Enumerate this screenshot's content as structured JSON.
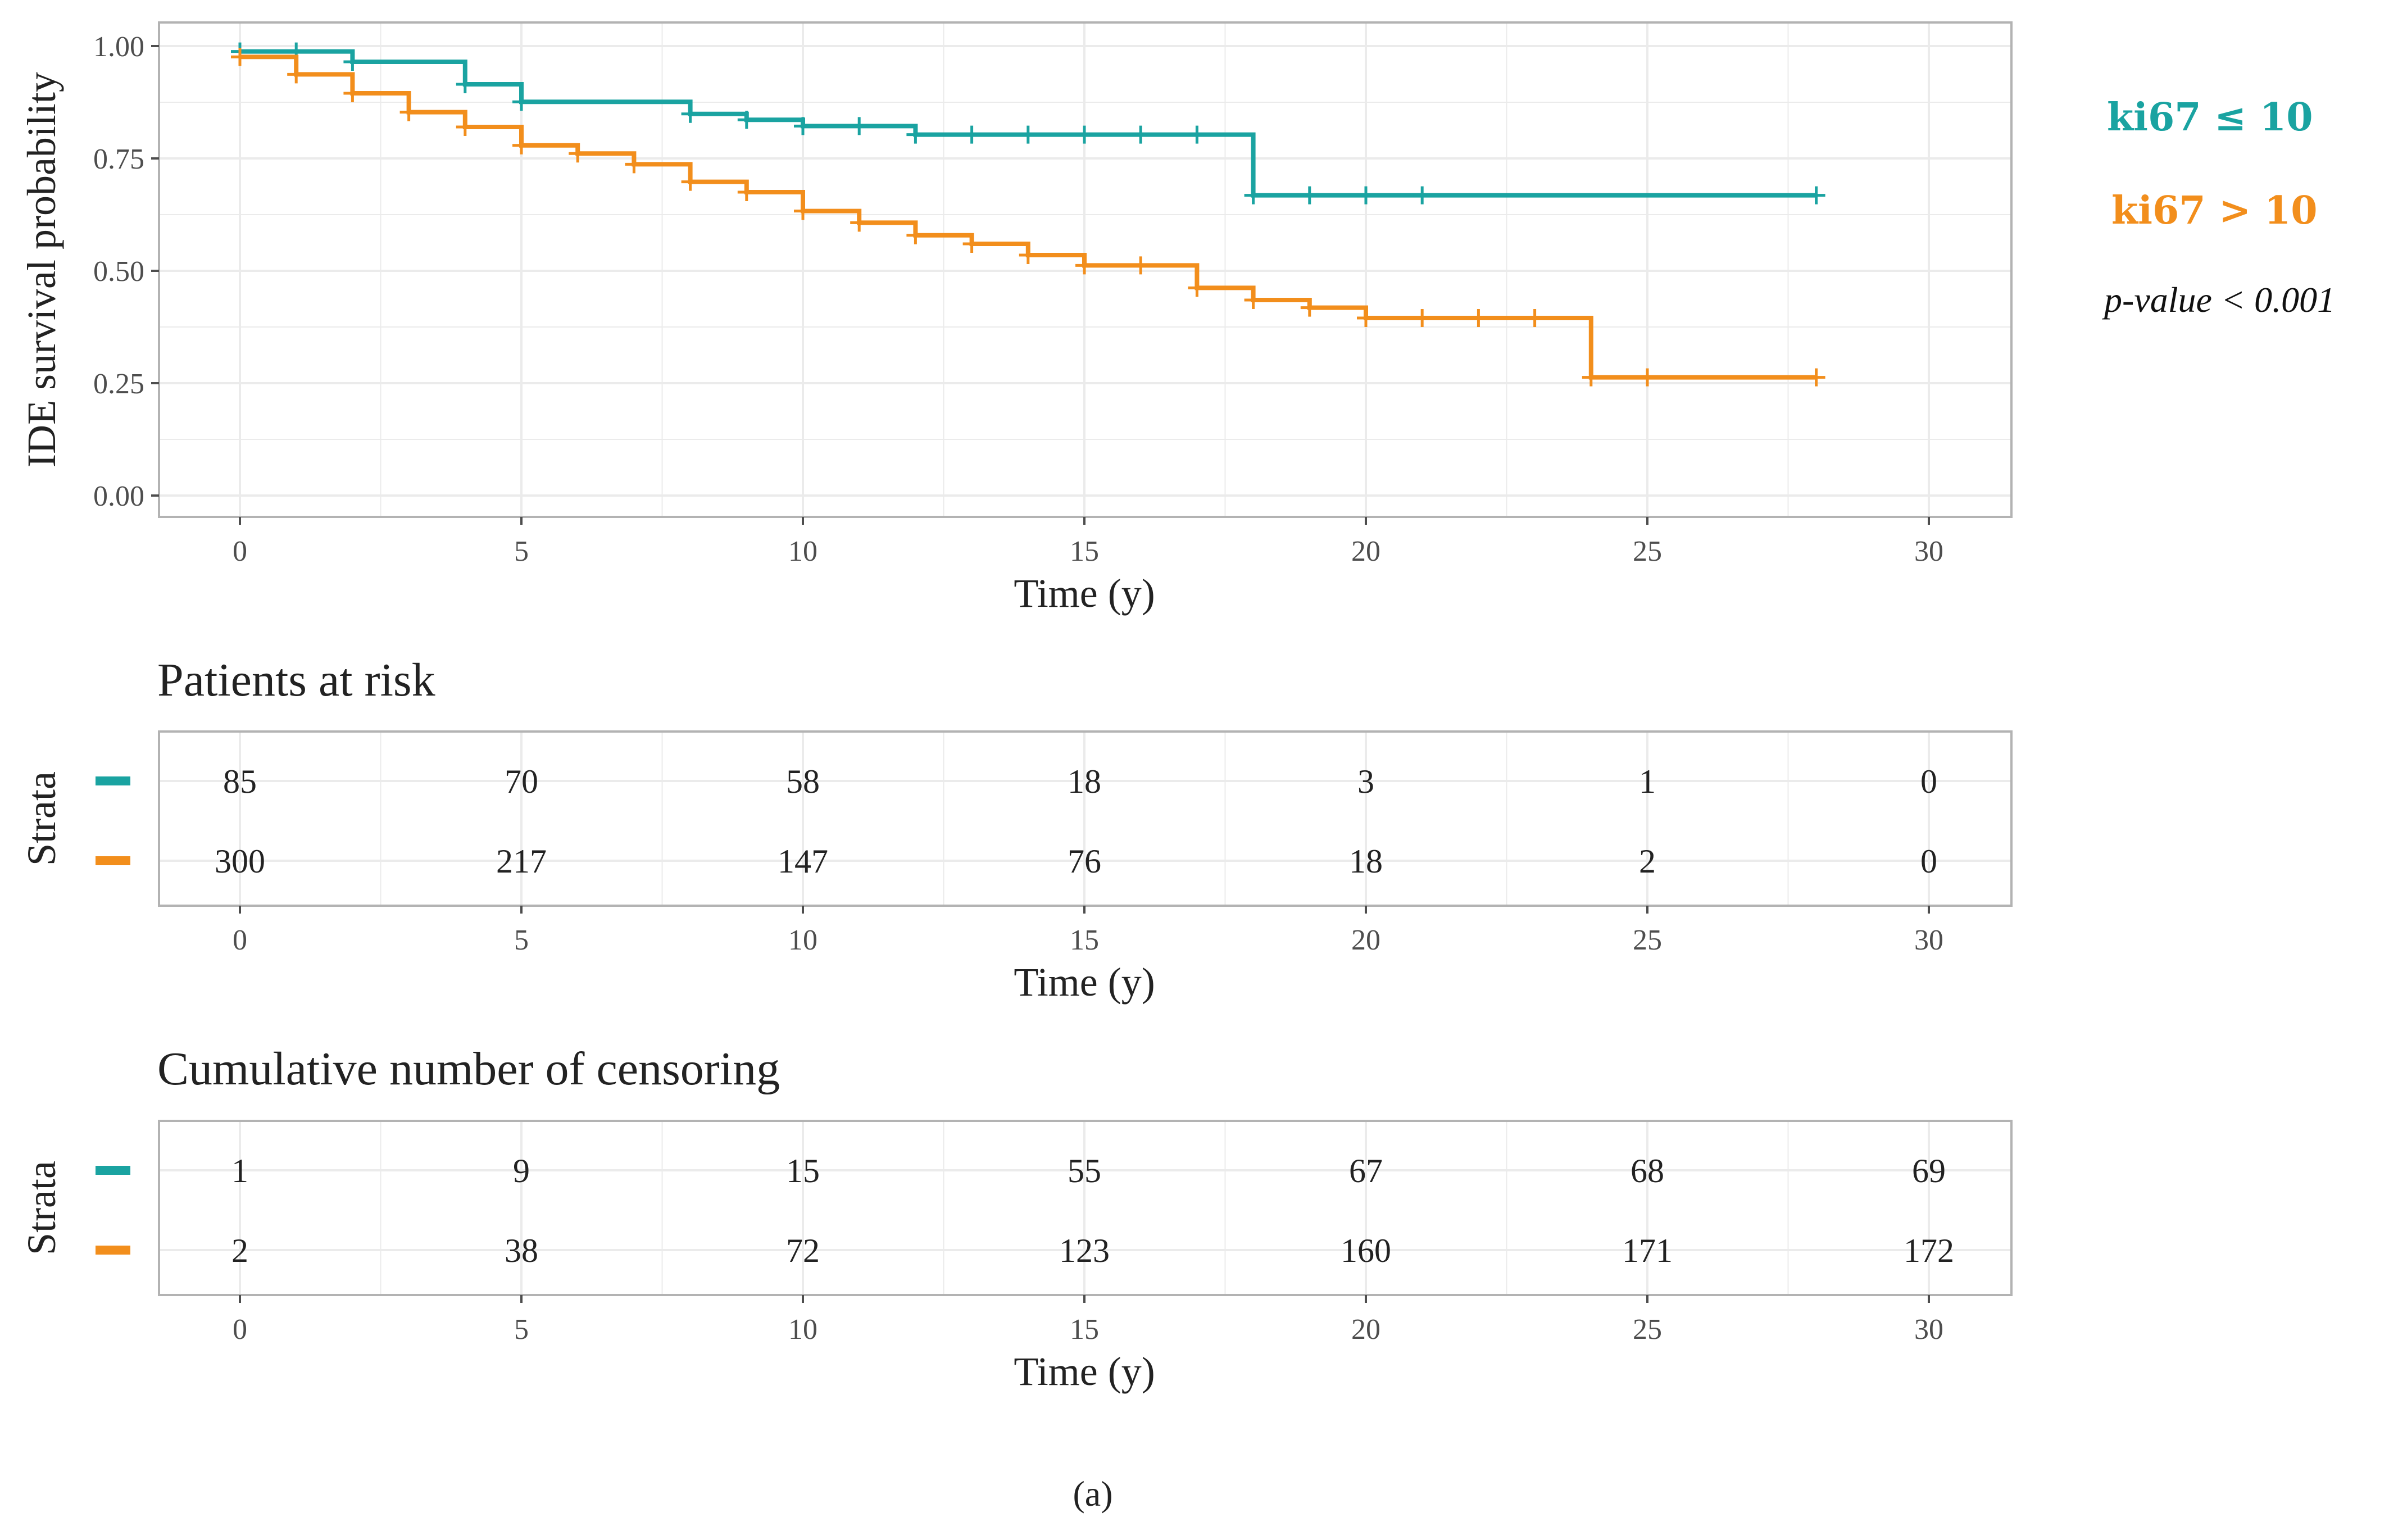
{
  "chart_data": [
    {
      "type": "line",
      "subtype": "kaplan-meier-step",
      "xlabel": "Time (y)",
      "ylabel": "IDE survival probability",
      "xlim": [
        0,
        30
      ],
      "ylim": [
        0,
        1
      ],
      "x_ticks": [
        "0",
        "5",
        "10",
        "15",
        "20",
        "25",
        "30"
      ],
      "y_ticks": [
        "0.00",
        "0.25",
        "0.50",
        "0.75",
        "1.00"
      ],
      "grid": true,
      "legend_placement": "right",
      "series": [
        {
          "name": "ki67 ≤ 10",
          "color": "#1aa3a1",
          "steps": [
            [
              0,
              0.988
            ],
            [
              1,
              0.988
            ],
            [
              2,
              0.965
            ],
            [
              4,
              0.915
            ],
            [
              5,
              0.876
            ],
            [
              8,
              0.849
            ],
            [
              9,
              0.836
            ],
            [
              10,
              0.822
            ],
            [
              12,
              0.803
            ],
            [
              18,
              0.668
            ],
            [
              28,
              0.668
            ]
          ],
          "censor_x": [
            0,
            1,
            2,
            4,
            5,
            8,
            9,
            10,
            11,
            12,
            13,
            14,
            15,
            16,
            17,
            18,
            19,
            20,
            21,
            28
          ]
        },
        {
          "name": "ki67 > 10",
          "color": "#f28e1c",
          "steps": [
            [
              0,
              0.976
            ],
            [
              1,
              0.937
            ],
            [
              2,
              0.895
            ],
            [
              3,
              0.853
            ],
            [
              4,
              0.82
            ],
            [
              5,
              0.779
            ],
            [
              6,
              0.761
            ],
            [
              7,
              0.737
            ],
            [
              8,
              0.698
            ],
            [
              9,
              0.675
            ],
            [
              10,
              0.633
            ],
            [
              11,
              0.607
            ],
            [
              12,
              0.579
            ],
            [
              13,
              0.56
            ],
            [
              14,
              0.535
            ],
            [
              15,
              0.512
            ],
            [
              17,
              0.462
            ],
            [
              18,
              0.435
            ],
            [
              19,
              0.418
            ],
            [
              20,
              0.395
            ],
            [
              24,
              0.263
            ],
            [
              28,
              0.263
            ]
          ],
          "censor_x": [
            0,
            1,
            2,
            3,
            4,
            5,
            6,
            7,
            8,
            9,
            10,
            11,
            12,
            13,
            14,
            15,
            16,
            17,
            18,
            19,
            20,
            21,
            22,
            23,
            24,
            25,
            28
          ]
        }
      ],
      "annotations": {
        "legend_a": "ki67 ≤ 10",
        "legend_b": "ki67 > 10",
        "p_value": "p-value < 0.001"
      }
    },
    {
      "type": "table",
      "title": "Patients at risk",
      "ylabel": "Strata",
      "xlabel": "Time (y)",
      "x": [
        0,
        5,
        10,
        15,
        20,
        25,
        30
      ],
      "x_ticks": [
        "0",
        "5",
        "10",
        "15",
        "20",
        "25",
        "30"
      ],
      "rows": [
        {
          "color": "#1aa3a1",
          "values": [
            "85",
            "70",
            "58",
            "18",
            "3",
            "1",
            "0"
          ]
        },
        {
          "color": "#f28e1c",
          "values": [
            "300",
            "217",
            "147",
            "76",
            "18",
            "2",
            "0"
          ]
        }
      ]
    },
    {
      "type": "table",
      "title": "Cumulative number of censoring",
      "ylabel": "Strata",
      "xlabel": "Time (y)",
      "x": [
        0,
        5,
        10,
        15,
        20,
        25,
        30
      ],
      "x_ticks": [
        "0",
        "5",
        "10",
        "15",
        "20",
        "25",
        "30"
      ],
      "rows": [
        {
          "color": "#1aa3a1",
          "values": [
            "1",
            "9",
            "15",
            "55",
            "67",
            "68",
            "69"
          ]
        },
        {
          "color": "#f28e1c",
          "values": [
            "2",
            "38",
            "72",
            "123",
            "160",
            "171",
            "172"
          ]
        }
      ]
    }
  ],
  "figure": {
    "caption": "(a)"
  }
}
